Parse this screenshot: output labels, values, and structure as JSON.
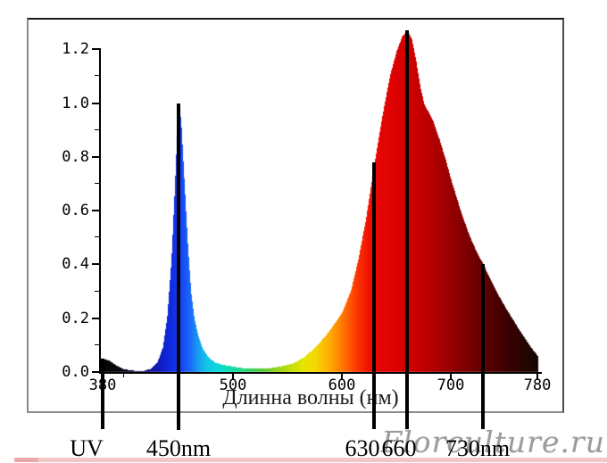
{
  "watermark": "Florculture.ru",
  "chart_data": {
    "type": "area",
    "title": "",
    "xlabel": "Длинна волны (нм)",
    "ylabel": "",
    "xlim": [
      380,
      780
    ],
    "ylim": [
      0.0,
      1.2
    ],
    "grid": false,
    "x_ticks": [
      "380",
      "500",
      "600",
      "700",
      "780"
    ],
    "x_minor_ticks": [
      400
    ],
    "y_ticks": [
      "0.0",
      "0.2",
      "0.4",
      "0.6",
      "0.8",
      "1.0",
      "1.2"
    ],
    "y_minor_ticks": [
      0.1,
      0.3,
      0.5,
      0.7,
      0.9,
      1.1
    ],
    "series": [
      {
        "name": "led-grow-light-spectrum",
        "points": [
          [
            380,
            0.05
          ],
          [
            386,
            0.042
          ],
          [
            392,
            0.025
          ],
          [
            398,
            0.012
          ],
          [
            405,
            0.006
          ],
          [
            412,
            0.004
          ],
          [
            418,
            0.005
          ],
          [
            424,
            0.012
          ],
          [
            430,
            0.035
          ],
          [
            435,
            0.09
          ],
          [
            439,
            0.2
          ],
          [
            443,
            0.42
          ],
          [
            446,
            0.68
          ],
          [
            448,
            0.87
          ],
          [
            450,
            1.0
          ],
          [
            452,
            0.93
          ],
          [
            455,
            0.7
          ],
          [
            458,
            0.48
          ],
          [
            461,
            0.3
          ],
          [
            464,
            0.2
          ],
          [
            468,
            0.13
          ],
          [
            472,
            0.085
          ],
          [
            477,
            0.055
          ],
          [
            483,
            0.035
          ],
          [
            490,
            0.027
          ],
          [
            497,
            0.022
          ],
          [
            505,
            0.016
          ],
          [
            515,
            0.012
          ],
          [
            525,
            0.012
          ],
          [
            535,
            0.015
          ],
          [
            545,
            0.022
          ],
          [
            555,
            0.032
          ],
          [
            565,
            0.055
          ],
          [
            575,
            0.09
          ],
          [
            585,
            0.135
          ],
          [
            595,
            0.19
          ],
          [
            600,
            0.22
          ],
          [
            608,
            0.3
          ],
          [
            615,
            0.42
          ],
          [
            622,
            0.57
          ],
          [
            630,
            0.78
          ],
          [
            637,
            0.95
          ],
          [
            644,
            1.1
          ],
          [
            650,
            1.19
          ],
          [
            655,
            1.245
          ],
          [
            660,
            1.27
          ],
          [
            664,
            1.24
          ],
          [
            668,
            1.16
          ],
          [
            672,
            1.06
          ],
          [
            676,
            0.99
          ],
          [
            680,
            0.965
          ],
          [
            684,
            0.93
          ],
          [
            690,
            0.86
          ],
          [
            696,
            0.78
          ],
          [
            700,
            0.72
          ],
          [
            706,
            0.64
          ],
          [
            712,
            0.565
          ],
          [
            718,
            0.5
          ],
          [
            724,
            0.445
          ],
          [
            730,
            0.4
          ],
          [
            737,
            0.34
          ],
          [
            744,
            0.285
          ],
          [
            751,
            0.235
          ],
          [
            758,
            0.19
          ],
          [
            764,
            0.15
          ],
          [
            770,
            0.115
          ],
          [
            775,
            0.085
          ],
          [
            780,
            0.06
          ]
        ]
      }
    ],
    "markers": [
      {
        "label": "UV",
        "wavelength": 380,
        "top_intensity": 0.05
      },
      {
        "label": "450nm",
        "wavelength": 450,
        "top_intensity": 1.0
      },
      {
        "label": "630",
        "wavelength": 630,
        "top_intensity": 0.78
      },
      {
        "label": "660",
        "wavelength": 660,
        "top_intensity": 1.27
      },
      {
        "label": "730nm",
        "wavelength": 730,
        "top_intensity": 0.4
      }
    ],
    "color_stops": [
      [
        380,
        "#050505"
      ],
      [
        395,
        "#08080c"
      ],
      [
        405,
        "#0a0a30"
      ],
      [
        415,
        "#101060"
      ],
      [
        425,
        "#1515a0"
      ],
      [
        435,
        "#0f20c8"
      ],
      [
        445,
        "#1030e8"
      ],
      [
        452,
        "#1545f5"
      ],
      [
        460,
        "#1b68f8"
      ],
      [
        468,
        "#18a0f0"
      ],
      [
        476,
        "#10c8e8"
      ],
      [
        486,
        "#0cd8d8"
      ],
      [
        495,
        "#10dcb4"
      ],
      [
        505,
        "#20d890"
      ],
      [
        515,
        "#38d060"
      ],
      [
        525,
        "#50cc38"
      ],
      [
        535,
        "#78d020"
      ],
      [
        545,
        "#a8d810"
      ],
      [
        555,
        "#cce008"
      ],
      [
        565,
        "#e8e400"
      ],
      [
        575,
        "#f4d800"
      ],
      [
        585,
        "#fcb800"
      ],
      [
        595,
        "#ff9000"
      ],
      [
        605,
        "#ff6000"
      ],
      [
        615,
        "#fc3000"
      ],
      [
        625,
        "#f01000"
      ],
      [
        635,
        "#e60505"
      ],
      [
        645,
        "#e00202"
      ],
      [
        655,
        "#d80000"
      ],
      [
        665,
        "#cc0000"
      ],
      [
        675,
        "#c00000"
      ],
      [
        685,
        "#b00000"
      ],
      [
        695,
        "#a00000"
      ],
      [
        705,
        "#8e0000"
      ],
      [
        715,
        "#7c0000"
      ],
      [
        725,
        "#6a0000"
      ],
      [
        735,
        "#580000"
      ],
      [
        745,
        "#460000"
      ],
      [
        755,
        "#360000"
      ],
      [
        765,
        "#280400"
      ],
      [
        775,
        "#1c0600"
      ],
      [
        780,
        "#160600"
      ]
    ]
  }
}
